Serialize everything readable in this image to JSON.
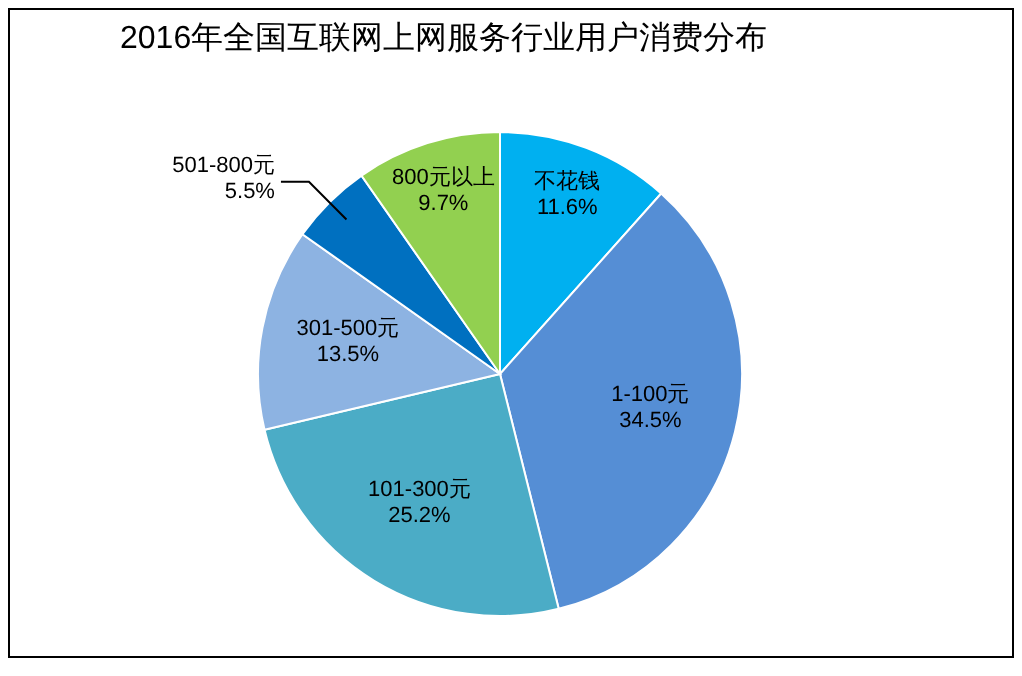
{
  "chart_data": {
    "type": "pie",
    "title": "2016年全国互联网上网服务行业用户消费分布",
    "categories": [
      "不花钱",
      "1-100元",
      "101-300元",
      "301-500元",
      "501-800元",
      "800元以上"
    ],
    "values": [
      11.6,
      34.5,
      25.2,
      13.5,
      5.5,
      9.7
    ],
    "colors": [
      "#00b0f0",
      "#558ed5",
      "#4bacc6",
      "#8db3e2",
      "#0070c0",
      "#92d050"
    ],
    "value_labels": [
      "11.6%",
      "34.5%",
      "25.2%",
      "13.5%",
      "5.5%",
      "9.7%"
    ],
    "legend": false
  }
}
